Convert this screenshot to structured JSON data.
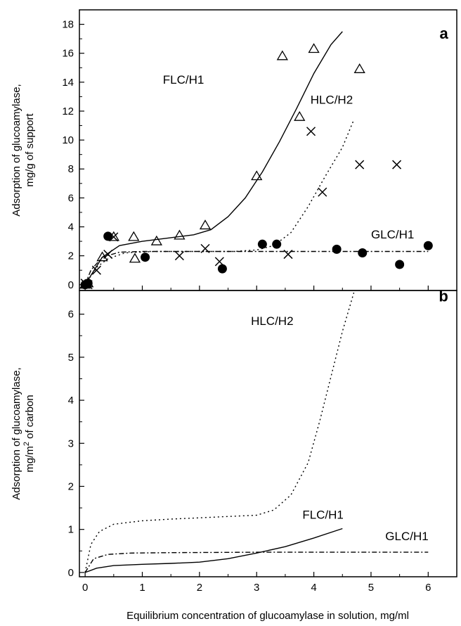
{
  "chart_data": [
    {
      "panel": "a",
      "type": "scatter",
      "ylabel_line1": "Adsorption of glucoamylase,",
      "ylabel_line2": "mg/g of support",
      "xlim": [
        -0.1,
        6.5
      ],
      "ylim": [
        -0.4,
        19
      ],
      "xticks": [
        0,
        1,
        2,
        3,
        4,
        5,
        6
      ],
      "yticks": [
        0,
        2,
        4,
        6,
        8,
        10,
        12,
        14,
        16,
        18
      ],
      "series": [
        {
          "name": "FLC/H1",
          "marker": "triangle",
          "points": [
            [
              0.0,
              0.0
            ],
            [
              0.05,
              0.1
            ],
            [
              0.3,
              1.9
            ],
            [
              0.5,
              3.3
            ],
            [
              0.85,
              3.3
            ],
            [
              0.87,
              1.8
            ],
            [
              1.25,
              3.0
            ],
            [
              1.65,
              3.4
            ],
            [
              2.1,
              4.1
            ],
            [
              3.0,
              7.5
            ],
            [
              3.45,
              15.8
            ],
            [
              3.75,
              11.6
            ],
            [
              4.0,
              16.3
            ],
            [
              4.8,
              14.9
            ]
          ],
          "curve": [
            [
              0.0,
              0.0
            ],
            [
              0.3,
              1.9
            ],
            [
              0.6,
              2.7
            ],
            [
              1.0,
              3.0
            ],
            [
              1.5,
              3.25
            ],
            [
              1.9,
              3.45
            ],
            [
              2.2,
              3.8
            ],
            [
              2.5,
              4.7
            ],
            [
              2.8,
              6.0
            ],
            [
              3.1,
              7.8
            ],
            [
              3.4,
              9.9
            ],
            [
              3.7,
              12.2
            ],
            [
              4.0,
              14.6
            ],
            [
              4.3,
              16.6
            ],
            [
              4.5,
              17.5
            ]
          ]
        },
        {
          "name": "HLC/H2",
          "marker": "cross",
          "points": [
            [
              0.0,
              0.1
            ],
            [
              0.05,
              0.0
            ],
            [
              0.2,
              1.0
            ],
            [
              0.4,
              2.1
            ],
            [
              0.5,
              3.3
            ],
            [
              1.65,
              2.0
            ],
            [
              2.1,
              2.5
            ],
            [
              2.35,
              1.6
            ],
            [
              3.55,
              2.1
            ],
            [
              3.95,
              10.6
            ],
            [
              4.15,
              6.4
            ],
            [
              4.8,
              8.3
            ],
            [
              5.45,
              8.3
            ]
          ],
          "curve": [
            [
              0.0,
              0.0
            ],
            [
              0.2,
              1.2
            ],
            [
              0.4,
              1.8
            ],
            [
              0.7,
              2.2
            ],
            [
              1.2,
              2.3
            ],
            [
              2.0,
              2.3
            ],
            [
              2.6,
              2.3
            ],
            [
              3.0,
              2.4
            ],
            [
              3.3,
              2.7
            ],
            [
              3.6,
              3.6
            ],
            [
              3.9,
              5.4
            ],
            [
              4.2,
              7.5
            ],
            [
              4.5,
              9.5
            ],
            [
              4.7,
              11.4
            ]
          ],
          "curve_style": "dotted"
        },
        {
          "name": "GLC/H1",
          "marker": "filled-circle",
          "points": [
            [
              0.0,
              0.0
            ],
            [
              0.05,
              0.1
            ],
            [
              0.4,
              3.35
            ],
            [
              1.05,
              1.9
            ],
            [
              2.4,
              1.1
            ],
            [
              3.1,
              2.8
            ],
            [
              3.35,
              2.8
            ],
            [
              4.4,
              2.45
            ],
            [
              4.85,
              2.2
            ],
            [
              5.5,
              1.4
            ],
            [
              6.0,
              2.7
            ]
          ],
          "curve": [
            [
              0.0,
              0.0
            ],
            [
              0.1,
              1.0
            ],
            [
              0.3,
              1.9
            ],
            [
              0.6,
              2.25
            ],
            [
              1.0,
              2.3
            ],
            [
              2.0,
              2.3
            ],
            [
              3.0,
              2.3
            ],
            [
              4.0,
              2.3
            ],
            [
              5.0,
              2.3
            ],
            [
              6.0,
              2.3
            ]
          ],
          "curve_style": "dash-dot"
        }
      ],
      "labels": [
        {
          "text": "FLC/H1",
          "x": 1.36,
          "y": 13.9
        },
        {
          "text": "HLC/H2",
          "x": 3.94,
          "y": 12.5
        },
        {
          "text": "GLC/H1",
          "x": 5.0,
          "y": 3.2
        },
        {
          "text": "a",
          "x": 6.35,
          "y": 17.0,
          "bold": true
        }
      ]
    },
    {
      "panel": "b",
      "type": "line",
      "xlabel": "Equilibrium concentration of glucoamylase in solution, mg/ml",
      "ylabel_line1": "Adsorption of glucoamylase,",
      "ylabel_line2_pre": "mg/m",
      "ylabel_line2_sup": "2",
      "ylabel_line2_post": " of carbon",
      "xlim": [
        -0.1,
        6.5
      ],
      "ylim": [
        -0.1,
        6.55
      ],
      "xticks": [
        0,
        1,
        2,
        3,
        4,
        5,
        6
      ],
      "yticks": [
        0,
        1,
        2,
        3,
        4,
        5,
        6
      ],
      "series": [
        {
          "name": "HLC/H2",
          "style": "dotted",
          "curve": [
            [
              0.0,
              0.0
            ],
            [
              0.1,
              0.65
            ],
            [
              0.25,
              0.95
            ],
            [
              0.5,
              1.12
            ],
            [
              1.0,
              1.2
            ],
            [
              1.5,
              1.24
            ],
            [
              2.0,
              1.27
            ],
            [
              2.5,
              1.3
            ],
            [
              3.0,
              1.33
            ],
            [
              3.3,
              1.45
            ],
            [
              3.6,
              1.8
            ],
            [
              3.9,
              2.55
            ],
            [
              4.1,
              3.5
            ],
            [
              4.3,
              4.55
            ],
            [
              4.5,
              5.6
            ],
            [
              4.7,
              6.5
            ]
          ]
        },
        {
          "name": "FLC/H1",
          "style": "solid",
          "curve": [
            [
              0.0,
              0.0
            ],
            [
              0.2,
              0.1
            ],
            [
              0.5,
              0.16
            ],
            [
              1.0,
              0.19
            ],
            [
              1.5,
              0.21
            ],
            [
              2.0,
              0.24
            ],
            [
              2.5,
              0.32
            ],
            [
              3.0,
              0.45
            ],
            [
              3.5,
              0.6
            ],
            [
              4.0,
              0.8
            ],
            [
              4.5,
              1.02
            ]
          ]
        },
        {
          "name": "GLC/H1",
          "style": "dash-dot",
          "curve": [
            [
              0.0,
              0.0
            ],
            [
              0.15,
              0.32
            ],
            [
              0.4,
              0.42
            ],
            [
              0.8,
              0.45
            ],
            [
              1.5,
              0.46
            ],
            [
              3.0,
              0.47
            ],
            [
              4.5,
              0.47
            ],
            [
              6.0,
              0.47
            ]
          ]
        }
      ],
      "labels": [
        {
          "text": "HLC/H2",
          "x": 2.9,
          "y": 5.75
        },
        {
          "text": "FLC/H1",
          "x": 3.8,
          "y": 1.25
        },
        {
          "text": "GLC/H1",
          "x": 5.25,
          "y": 0.75
        },
        {
          "text": "b",
          "x": 6.35,
          "y": 6.3,
          "bold": true
        }
      ]
    }
  ]
}
